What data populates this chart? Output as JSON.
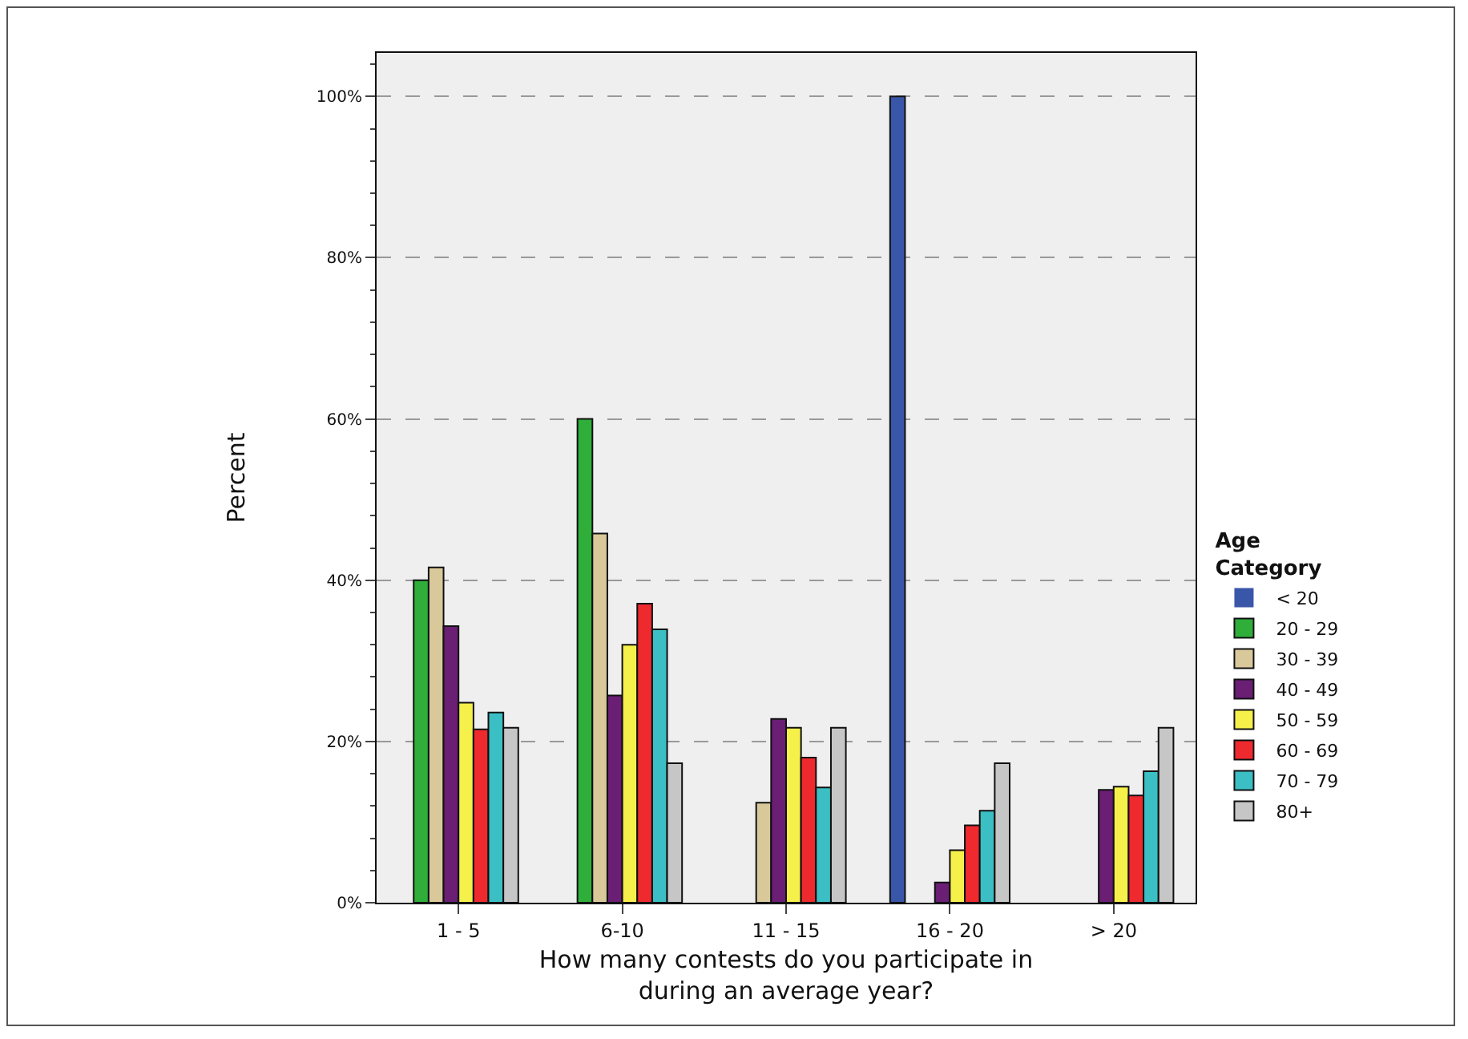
{
  "chart_data": {
    "type": "bar",
    "xlabel": "How many contests do you participate in during an average year?",
    "ylabel": "Percent",
    "legend_title": "Age Category",
    "categories": [
      "1 - 5",
      "6-10",
      "11 - 15",
      "16 - 20",
      "> 20"
    ],
    "series": [
      {
        "name": "< 20",
        "color": "#3a56a8",
        "values": [
          0,
          0,
          0,
          100,
          0
        ]
      },
      {
        "name": "20 - 29",
        "color": "#2fae3a",
        "values": [
          40,
          60,
          0,
          0,
          0
        ]
      },
      {
        "name": "30 - 39",
        "color": "#d9c99a",
        "values": [
          41.6,
          45.8,
          12.4,
          0,
          0
        ]
      },
      {
        "name": "40 - 49",
        "color": "#6a1e74",
        "values": [
          34.3,
          25.7,
          22.8,
          2.5,
          14
        ]
      },
      {
        "name": "50 - 59",
        "color": "#f5f04a",
        "values": [
          24.8,
          32,
          21.7,
          6.5,
          14.4
        ]
      },
      {
        "name": "60 - 69",
        "color": "#ee2a2f",
        "values": [
          21.5,
          37.1,
          18,
          9.6,
          13.3
        ]
      },
      {
        "name": "70 - 79",
        "color": "#3bbfc4",
        "values": [
          23.6,
          33.9,
          14.3,
          11.4,
          16.3
        ]
      },
      {
        "name": "80+",
        "color": "#c6c6c6",
        "values": [
          21.7,
          17.3,
          21.7,
          17.3,
          21.7
        ]
      }
    ],
    "ylim": [
      0,
      105.4
    ],
    "yticks": [
      {
        "value": 0,
        "label": "0%"
      },
      {
        "value": 20,
        "label": "20%"
      },
      {
        "value": 40,
        "label": "40%"
      },
      {
        "value": 60,
        "label": "60%"
      },
      {
        "value": 80,
        "label": "80%"
      },
      {
        "value": 100,
        "label": "100%"
      }
    ],
    "grid": "y",
    "legend": "right"
  }
}
